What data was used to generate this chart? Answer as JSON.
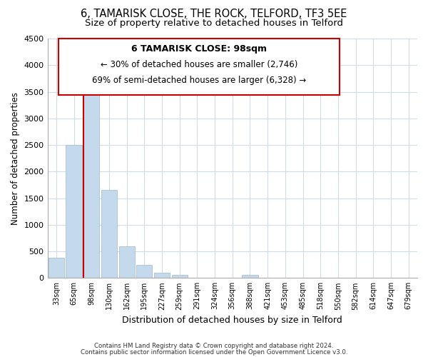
{
  "title": "6, TAMARISK CLOSE, THE ROCK, TELFORD, TF3 5EE",
  "subtitle": "Size of property relative to detached houses in Telford",
  "xlabel": "Distribution of detached houses by size in Telford",
  "ylabel": "Number of detached properties",
  "categories": [
    "33sqm",
    "65sqm",
    "98sqm",
    "130sqm",
    "162sqm",
    "195sqm",
    "227sqm",
    "259sqm",
    "291sqm",
    "324sqm",
    "356sqm",
    "388sqm",
    "421sqm",
    "453sqm",
    "485sqm",
    "518sqm",
    "550sqm",
    "582sqm",
    "614sqm",
    "647sqm",
    "679sqm"
  ],
  "values": [
    380,
    2500,
    3750,
    1650,
    600,
    240,
    100,
    60,
    0,
    0,
    0,
    60,
    0,
    0,
    0,
    0,
    0,
    0,
    0,
    0,
    0
  ],
  "bar_color": "#c5d9ed",
  "bar_edge_color": "#a0b8d0",
  "marker_line_color": "#cc0000",
  "marker_bar_index": 2,
  "ylim": [
    0,
    4500
  ],
  "yticks": [
    0,
    500,
    1000,
    1500,
    2000,
    2500,
    3000,
    3500,
    4000,
    4500
  ],
  "annotation_title": "6 TAMARISK CLOSE: 98sqm",
  "annotation_line1": "← 30% of detached houses are smaller (2,746)",
  "annotation_line2": "69% of semi-detached houses are larger (6,328) →",
  "footer1": "Contains HM Land Registry data © Crown copyright and database right 2024.",
  "footer2": "Contains public sector information licensed under the Open Government Licence v3.0.",
  "background_color": "#ffffff",
  "grid_color": "#d0dce8",
  "title_fontsize": 10.5,
  "subtitle_fontsize": 9.5,
  "ann_box_edgecolor": "#cc0000",
  "ann_fontsize_title": 9,
  "ann_fontsize_body": 8.5
}
